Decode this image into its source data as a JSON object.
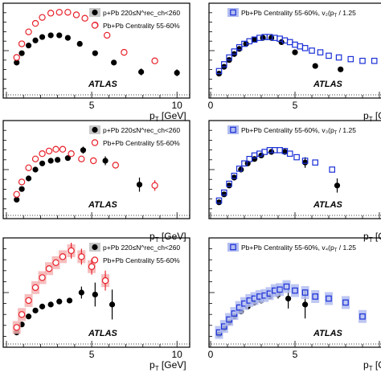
{
  "figure": {
    "brand": "ATLAS",
    "xtitle_main": "p",
    "xtitle_sub": "T",
    "xtitle_unit": " [GeV]",
    "xtitle_right_cut": " [G",
    "colors": {
      "ppb": "#000000",
      "pbpb": "#e8202a",
      "pbpb_scaled": "#1a2fd6",
      "band_red": "#f5b3b3",
      "band_blue": "#b3bdf0"
    }
  },
  "chart_data": [
    {
      "type": "scatter",
      "panel": "row1-left",
      "xlim": [
        0,
        11.5
      ],
      "ylim": [
        0,
        1
      ],
      "xticks": [
        5,
        10
      ],
      "series": [
        {
          "name": "p+Pb 220≤N^rec_ch<260",
          "marker": "filled-circle",
          "color": "#000000",
          "x": [
            0.6,
            0.9,
            1.3,
            1.7,
            2.1,
            2.6,
            3.1,
            3.6,
            4.3,
            5.2,
            6.3,
            7.9,
            10.0
          ],
          "y": [
            0.36,
            0.47,
            0.56,
            0.62,
            0.66,
            0.68,
            0.68,
            0.65,
            0.58,
            0.47,
            0.36,
            0.25,
            0.24
          ],
          "err": [
            0,
            0,
            0,
            0,
            0,
            0,
            0,
            0,
            0,
            0,
            0.03,
            0.04,
            0.04
          ]
        },
        {
          "name": "Pb+Pb Centrality 55-60%",
          "marker": "open-circle",
          "color": "#e8202a",
          "x": [
            0.6,
            0.9,
            1.3,
            1.7,
            2.1,
            2.6,
            3.1,
            3.6,
            4.1,
            4.6,
            5.2,
            5.9,
            6.9,
            8.7
          ],
          "y": [
            0.42,
            0.58,
            0.72,
            0.82,
            0.89,
            0.94,
            0.95,
            0.95,
            0.92,
            0.88,
            0.8,
            0.68,
            0.48,
            0.38
          ],
          "err": [
            0,
            0,
            0,
            0,
            0,
            0,
            0,
            0,
            0,
            0,
            0,
            0,
            0,
            0
          ]
        }
      ]
    },
    {
      "type": "scatter",
      "panel": "row1-right",
      "xlim": [
        0,
        10
      ],
      "ylim": [
        0,
        1
      ],
      "xticks": [
        0,
        5
      ],
      "series": [
        {
          "name": "",
          "marker": "filled-circle",
          "color": "#000000",
          "x": [
            0.5,
            0.8,
            1.1,
            1.4,
            1.7,
            2.1,
            2.6,
            3.1,
            3.6,
            4.2,
            5.0,
            6.2,
            7.7
          ],
          "y": [
            0.23,
            0.31,
            0.39,
            0.46,
            0.52,
            0.58,
            0.63,
            0.65,
            0.65,
            0.6,
            0.48,
            0.32,
            0.28
          ]
        },
        {
          "name": "Pb+Pb Centrality 55-60%, v2(pT / 1.25",
          "marker": "open-square",
          "color": "#1a2fd6",
          "x": [
            0.5,
            0.8,
            1.1,
            1.4,
            1.7,
            2.0,
            2.3,
            2.6,
            2.9,
            3.2,
            3.5,
            3.8,
            4.1,
            4.4,
            4.7,
            5.0,
            5.3,
            5.6,
            6.0,
            6.5,
            7.0,
            7.6,
            8.3,
            9.0,
            9.7
          ],
          "y": [
            0.26,
            0.34,
            0.42,
            0.49,
            0.54,
            0.58,
            0.61,
            0.63,
            0.65,
            0.66,
            0.66,
            0.65,
            0.64,
            0.62,
            0.6,
            0.57,
            0.55,
            0.53,
            0.5,
            0.48,
            0.44,
            0.42,
            0.4,
            0.38,
            0.38
          ]
        }
      ]
    },
    {
      "type": "scatter",
      "panel": "row2-left",
      "xlim": [
        0,
        11.5
      ],
      "ylim": [
        0,
        1
      ],
      "xticks": [],
      "series": [
        {
          "name": "p+Pb 220≤N^rec_ch<260",
          "marker": "filled-circle",
          "color": "#000000",
          "x": [
            0.6,
            0.9,
            1.3,
            1.7,
            2.1,
            2.6,
            3.0,
            3.6,
            4.5,
            5.8,
            7.8
          ],
          "y": [
            0.16,
            0.28,
            0.4,
            0.5,
            0.57,
            0.6,
            0.61,
            0.63,
            0.72,
            0.6,
            0.33
          ],
          "err": [
            0,
            0,
            0,
            0,
            0,
            0,
            0,
            0,
            0.04,
            0.05,
            0.08
          ]
        },
        {
          "name": "Pb+Pb Centrality 55-60%",
          "marker": "open-circle",
          "color": "#e8202a",
          "x": [
            0.6,
            0.9,
            1.3,
            1.7,
            2.1,
            2.5,
            2.9,
            3.3,
            3.8,
            4.4,
            5.1,
            6.4,
            8.7
          ],
          "y": [
            0.22,
            0.36,
            0.52,
            0.62,
            0.68,
            0.71,
            0.73,
            0.73,
            0.68,
            0.62,
            0.6,
            0.55,
            0.32
          ],
          "err": [
            0,
            0,
            0,
            0,
            0,
            0,
            0,
            0,
            0,
            0,
            0,
            0,
            0.06
          ]
        }
      ]
    },
    {
      "type": "scatter",
      "panel": "row2-right",
      "xlim": [
        0,
        10
      ],
      "ylim": [
        0,
        1
      ],
      "xticks": [],
      "series": [
        {
          "name": "",
          "marker": "filled-circle",
          "color": "#000000",
          "x": [
            0.5,
            0.8,
            1.1,
            1.4,
            1.8,
            2.2,
            2.6,
            3.0,
            3.6,
            4.4,
            5.6,
            7.5
          ],
          "y": [
            0.13,
            0.22,
            0.32,
            0.41,
            0.5,
            0.57,
            0.62,
            0.66,
            0.7,
            0.7,
            0.58,
            0.32
          ],
          "err": [
            0,
            0,
            0,
            0,
            0,
            0,
            0,
            0,
            0,
            0.03,
            0.06,
            0.08
          ]
        },
        {
          "name": "Pb+Pb Centrality 55-60%, v3(pT / 1.25",
          "marker": "open-square",
          "color": "#1a2fd6",
          "x": [
            0.5,
            0.8,
            1.1,
            1.4,
            1.7,
            2.0,
            2.3,
            2.6,
            2.9,
            3.2,
            3.5,
            3.8,
            4.1,
            4.4,
            4.7,
            5.1,
            5.6,
            6.2,
            7.2
          ],
          "y": [
            0.15,
            0.24,
            0.34,
            0.43,
            0.51,
            0.57,
            0.62,
            0.66,
            0.68,
            0.7,
            0.72,
            0.72,
            0.72,
            0.71,
            0.68,
            0.64,
            0.6,
            0.58,
            0.5
          ]
        }
      ]
    },
    {
      "type": "scatter",
      "panel": "row3-left",
      "xlim": [
        0,
        11.5
      ],
      "ylim": [
        0,
        1
      ],
      "xticks": [
        5,
        10
      ],
      "series": [
        {
          "name": "p+Pb 220≤N^rec_ch<260",
          "marker": "filled-circle",
          "color": "#000000",
          "x": [
            0.6,
            0.9,
            1.3,
            1.7,
            2.1,
            2.6,
            3.1,
            3.7,
            4.4,
            5.2,
            6.2
          ],
          "y": [
            0.1,
            0.18,
            0.26,
            0.32,
            0.36,
            0.38,
            0.41,
            0.42,
            0.5,
            0.48,
            0.38
          ],
          "err": [
            0,
            0,
            0,
            0,
            0,
            0,
            0,
            0,
            0.06,
            0.12,
            0.15
          ]
        },
        {
          "name": "Pb+Pb Centrality 55-60%",
          "marker": "open-circle",
          "color": "#e8202a",
          "x": [
            0.6,
            0.9,
            1.3,
            1.7,
            2.1,
            2.5,
            2.9,
            3.3,
            3.8,
            4.4,
            5.0,
            5.8
          ],
          "y": [
            0.15,
            0.28,
            0.42,
            0.55,
            0.65,
            0.74,
            0.8,
            0.86,
            0.92,
            0.86,
            0.76,
            0.62
          ],
          "err": [
            0,
            0,
            0,
            0,
            0,
            0,
            0,
            0,
            0.08,
            0.08,
            0.08,
            0.1
          ]
        }
      ]
    },
    {
      "type": "scatter",
      "panel": "row3-right",
      "xlim": [
        0,
        10
      ],
      "ylim": [
        0,
        1
      ],
      "xticks": [
        0,
        5
      ],
      "series": [
        {
          "name": "",
          "marker": "filled-circle",
          "color": "#000000",
          "x": [
            0.5,
            0.8,
            1.1,
            1.4,
            1.8,
            2.2,
            2.6,
            3.0,
            3.5,
            4.0,
            4.6,
            5.6
          ],
          "y": [
            0.08,
            0.14,
            0.2,
            0.26,
            0.31,
            0.36,
            0.4,
            0.42,
            0.46,
            0.48,
            0.44,
            0.38
          ],
          "err": [
            0,
            0,
            0,
            0,
            0,
            0,
            0,
            0,
            0,
            0.04,
            0.1,
            0.14
          ]
        },
        {
          "name": "Pb+Pb Centrality 55-60%, v4(pT / 1.25",
          "marker": "open-square",
          "color": "#1a2fd6",
          "x": [
            0.5,
            0.8,
            1.1,
            1.4,
            1.7,
            2.0,
            2.3,
            2.6,
            2.9,
            3.2,
            3.5,
            3.8,
            4.1,
            4.5,
            5.0,
            5.6,
            6.2,
            7.0,
            8.0,
            9.0
          ],
          "y": [
            0.1,
            0.16,
            0.23,
            0.29,
            0.35,
            0.39,
            0.42,
            0.44,
            0.46,
            0.47,
            0.49,
            0.52,
            0.53,
            0.56,
            0.52,
            0.5,
            0.46,
            0.44,
            0.4,
            0.26
          ]
        }
      ]
    }
  ],
  "panels_text": [
    {
      "legend": [
        {
          "label": "p+Pb 220≤N^rec_ch<260",
          "marker": "filled-circle"
        },
        {
          "label": "Pb+Pb Centrality 55-60%",
          "marker": "open-circle"
        }
      ]
    },
    {
      "legend": [
        {
          "label": "Pb+Pb  Centrality 55-60%, v₂(p",
          "sub": "T",
          "tail": " / 1.25",
          "marker": "open-square"
        }
      ]
    },
    {
      "legend": [
        {
          "label": "p+Pb 220≤N^rec_ch<260",
          "marker": "filled-circle"
        },
        {
          "label": "Pb+Pb Centrality 55-60%",
          "marker": "open-circle"
        }
      ]
    },
    {
      "legend": [
        {
          "label": "Pb+Pb  Centrality 55-60%, v₃(p",
          "sub": "T",
          "tail": " / 1.25",
          "marker": "open-square"
        }
      ]
    },
    {
      "legend": [
        {
          "label": "p+Pb 220≤N^rec_ch<260",
          "marker": "filled-circle"
        },
        {
          "label": "Pb+Pb Centrality 55-60%",
          "marker": "open-circle"
        }
      ]
    },
    {
      "legend": [
        {
          "label": "Pb+Pb  Centrality 55-60%, v₄(p",
          "sub": "T",
          "tail": " / 1.25",
          "marker": "open-square"
        }
      ]
    }
  ]
}
